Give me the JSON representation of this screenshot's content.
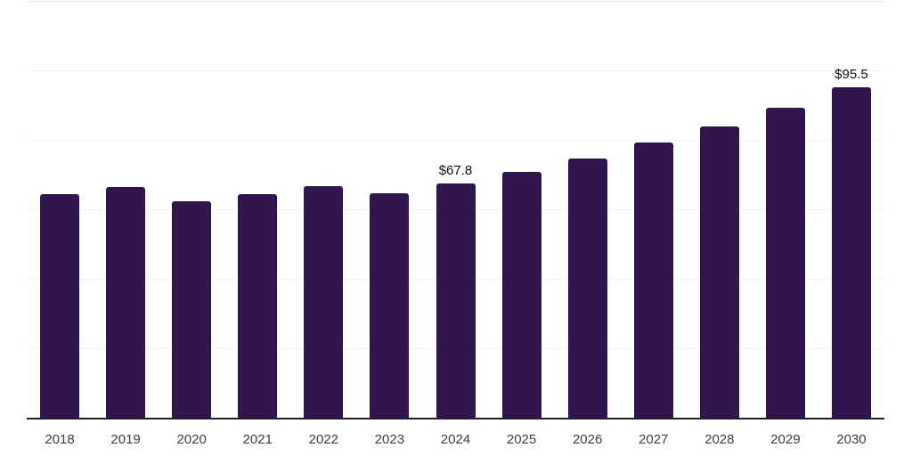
{
  "chart_data": {
    "type": "bar",
    "title": "",
    "xlabel": "",
    "ylabel": "",
    "categories": [
      "2018",
      "2019",
      "2020",
      "2021",
      "2022",
      "2023",
      "2024",
      "2025",
      "2026",
      "2027",
      "2028",
      "2029",
      "2030"
    ],
    "values": [
      64.5,
      66.6,
      62.5,
      64.6,
      67.0,
      64.8,
      67.8,
      71.1,
      75.0,
      79.6,
      84.0,
      89.6,
      95.5
    ],
    "data_labels": [
      "",
      "",
      "",
      "",
      "",
      "",
      "$67.8",
      "",
      "",
      "",
      "",
      "",
      "$95.5"
    ],
    "ylim": [
      0,
      120
    ],
    "ytick_step": 20,
    "y_tick_labels_shown": false,
    "grid": "horizontal",
    "legend_position": "none",
    "bar_color": "#30164C",
    "gridline_color": "#F2F2F2",
    "axis_line_color": "#1F1F1F",
    "tick_label_color": "#404040",
    "data_label_color": "#111111",
    "background_color": "#FFFFFF"
  }
}
